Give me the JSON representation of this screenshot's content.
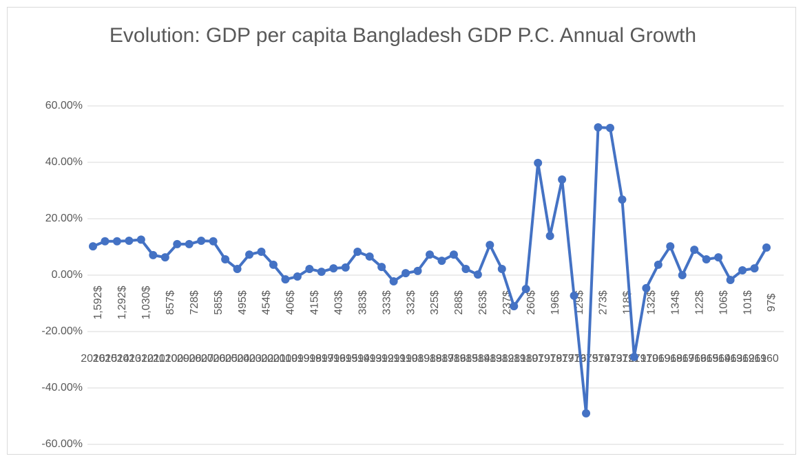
{
  "chart_data": {
    "type": "line",
    "title": "Evolution: GDP per capita Bangladesh GDP P.C. Annual Growth",
    "categories": [
      "2016",
      "2015",
      "2014",
      "2013",
      "2012",
      "2011",
      "2010",
      "2009",
      "2008",
      "2007",
      "2006",
      "2005",
      "2004",
      "2003",
      "2002",
      "2001",
      "2000",
      "1999",
      "1998",
      "1997",
      "1996",
      "1995",
      "1994",
      "1993",
      "1992",
      "1991",
      "1990",
      "1989",
      "1988",
      "1987",
      "1986",
      "1985",
      "1984",
      "1983",
      "1982",
      "1981",
      "1980",
      "1979",
      "1978",
      "1977",
      "1976",
      "1975",
      "1974",
      "1973",
      "1972",
      "1971",
      "1970",
      "1969",
      "1968",
      "1967",
      "1966",
      "1965",
      "1964",
      "1963",
      "1962",
      "1961",
      "1960"
    ],
    "category_groups": [
      "1,592$",
      null,
      "1,292$",
      null,
      "1,030$",
      null,
      "857$",
      null,
      "728$",
      null,
      "585$",
      null,
      "495$",
      null,
      "454$",
      null,
      "406$",
      null,
      "415$",
      null,
      "403$",
      null,
      "383$",
      null,
      "333$",
      null,
      "332$",
      null,
      "325$",
      null,
      "288$",
      null,
      "263$",
      null,
      "237$",
      null,
      "260$",
      null,
      "196$",
      null,
      "129$",
      null,
      "273$",
      null,
      "118$",
      null,
      "132$",
      null,
      "134$",
      null,
      "122$",
      null,
      "106$",
      null,
      "101$",
      null,
      "97$"
    ],
    "series": [
      {
        "color": "#4472c4",
        "values": [
          10.2,
          12.0,
          12.0,
          12.2,
          12.6,
          7.1,
          6.3,
          11.0,
          11.0,
          12.2,
          12.0,
          5.6,
          2.2,
          7.3,
          8.3,
          3.7,
          -1.5,
          -0.5,
          2.2,
          1.2,
          2.4,
          2.7,
          8.3,
          6.6,
          2.9,
          -2.2,
          0.7,
          1.5,
          7.3,
          5.1,
          7.3,
          2.2,
          0.2,
          10.7,
          2.2,
          -11.0,
          -4.9,
          39.8,
          13.9,
          33.9,
          -7.3,
          -49.0,
          52.4,
          52.2,
          26.8,
          -29.0,
          -4.6,
          3.7,
          10.2,
          0.0,
          9.0,
          5.6,
          6.3,
          -1.7,
          1.7,
          2.4,
          9.8
        ]
      }
    ],
    "ylim": [
      -60,
      60
    ],
    "yticks": [
      {
        "value": -60,
        "label": "-60.00%"
      },
      {
        "value": -40,
        "label": "-40.00%"
      },
      {
        "value": -20,
        "label": "-20.00%"
      },
      {
        "value": 0,
        "label": "0.00%"
      },
      {
        "value": 20,
        "label": "20.00%"
      },
      {
        "value": 40,
        "label": "40.00%"
      },
      {
        "value": 60,
        "label": "60.00%"
      }
    ],
    "grid": true
  }
}
